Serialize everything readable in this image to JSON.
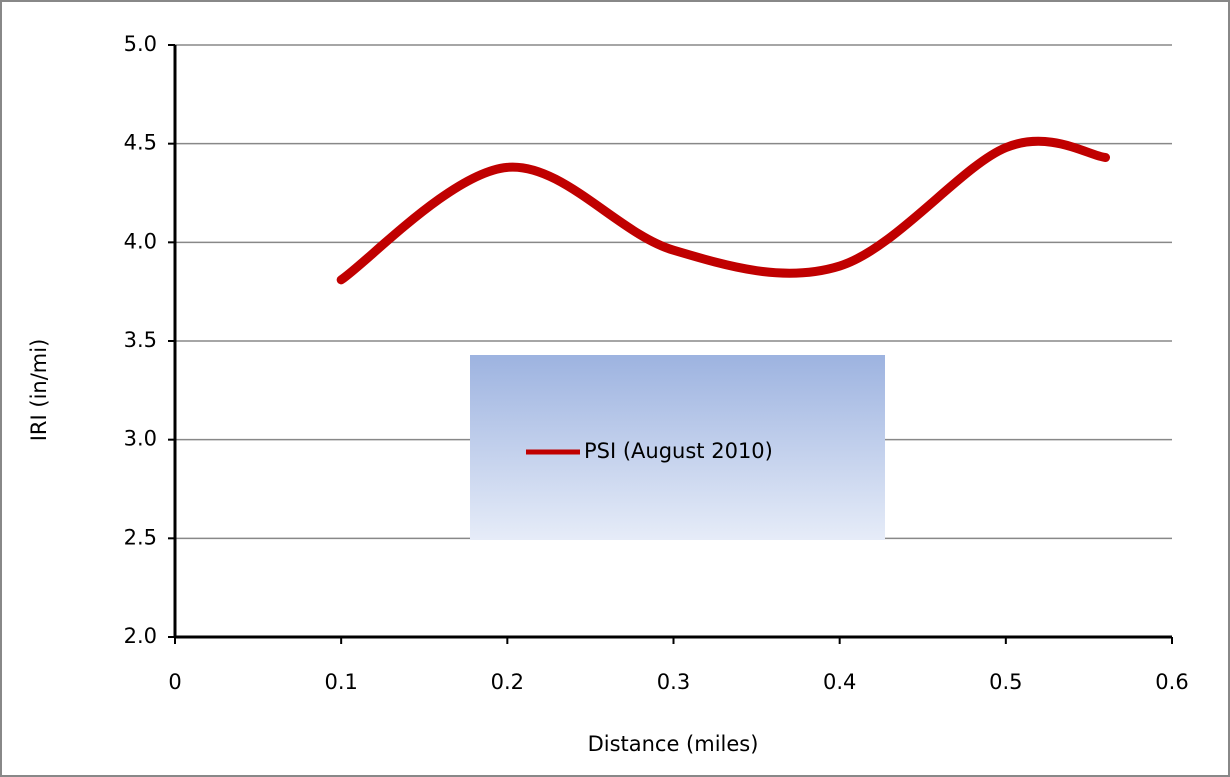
{
  "chart_data": {
    "type": "line",
    "x_label": "Distance (miles)",
    "y_label": "IRI (in/mi)",
    "x": [
      0.1,
      0.2,
      0.3,
      0.4,
      0.5,
      0.56
    ],
    "series": [
      {
        "name": "PSI (August 2010)",
        "color": "#c00000",
        "values": [
          3.81,
          4.38,
          3.96,
          3.88,
          4.48,
          4.43
        ]
      }
    ],
    "xlim": [
      0,
      0.6
    ],
    "xticks": [
      0,
      0.1,
      0.2,
      0.3,
      0.4,
      0.5,
      0.6
    ],
    "ylim": [
      2.0,
      5.0
    ],
    "yticks": [
      {
        "value": 2.0,
        "label": "2.0"
      },
      {
        "value": 2.5,
        "label": "2.5"
      },
      {
        "value": 3.0,
        "label": "3.0"
      },
      {
        "value": 3.5,
        "label": "3.5"
      },
      {
        "value": 4.0,
        "label": "4.0"
      },
      {
        "value": 4.5,
        "label": "4.5"
      },
      {
        "value": 5.0,
        "label": "5.0"
      }
    ],
    "grid": true,
    "smooth": true
  }
}
